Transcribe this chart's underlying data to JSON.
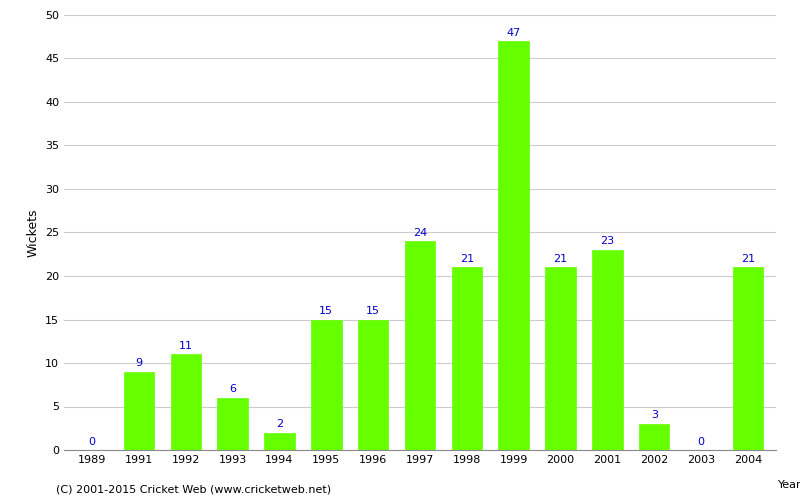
{
  "years": [
    1989,
    1991,
    1992,
    1993,
    1994,
    1995,
    1996,
    1997,
    1998,
    1999,
    2000,
    2001,
    2002,
    2003,
    2004
  ],
  "wickets": [
    0,
    9,
    11,
    6,
    2,
    15,
    15,
    24,
    21,
    47,
    21,
    23,
    3,
    0,
    21
  ],
  "bar_color": "#66ff00",
  "label_color": "#0000cc",
  "xlabel": "Year",
  "ylabel": "Wickets",
  "ylim": [
    0,
    50
  ],
  "yticks": [
    0,
    5,
    10,
    15,
    20,
    25,
    30,
    35,
    40,
    45,
    50
  ],
  "background_color": "#ffffff",
  "grid_color": "#cccccc",
  "footer": "(C) 2001-2015 Cricket Web (www.cricketweb.net)",
  "label_fontsize": 8,
  "axis_fontsize": 8,
  "footer_fontsize": 8,
  "ylabel_fontsize": 9
}
